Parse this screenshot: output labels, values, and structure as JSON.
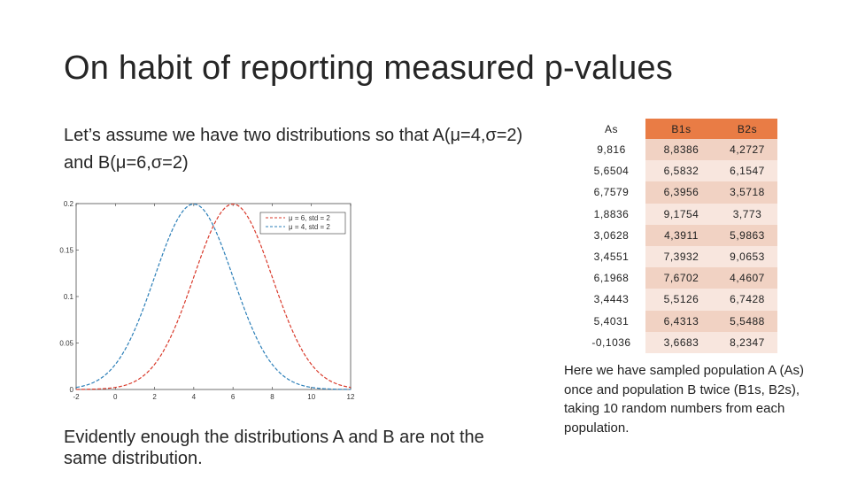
{
  "slide": {
    "title": "On habit of reporting measured p-values",
    "intro_text": "Let’s assume we have two distributions so that A(μ=4,σ=2) and B(μ=6,σ=2)",
    "conclusion_text": "Evidently enough the distributions A and B are not the same distribution.",
    "caption_text": "Here we have sampled population A (As) once and population B twice (B1s, B2s), taking 10 random numbers from each population."
  },
  "table": {
    "headers": [
      "As",
      "B1s",
      "B2s"
    ],
    "rows": [
      [
        "9,816",
        "8,8386",
        "4,2727"
      ],
      [
        "5,6504",
        "6,5832",
        "6,1547"
      ],
      [
        "6,7579",
        "6,3956",
        "3,5718"
      ],
      [
        "1,8836",
        "9,1754",
        "3,773"
      ],
      [
        "3,0628",
        "4,3911",
        "5,9863"
      ],
      [
        "3,4551",
        "7,3932",
        "9,0653"
      ],
      [
        "6,1968",
        "7,6702",
        "4,4607"
      ],
      [
        "3,4443",
        "5,5126",
        "6,7428"
      ],
      [
        "5,4031",
        "6,4313",
        "5,5488"
      ],
      [
        "-0,1036",
        "3,6683",
        "8,2347"
      ]
    ],
    "colors": {
      "header_accent": "#e97c45",
      "row_band_1": "#f1d2c3",
      "row_band_2": "#f8e6de"
    }
  },
  "chart_data": {
    "type": "line",
    "title": "",
    "xlabel": "",
    "ylabel": "",
    "xlim": [
      -2,
      12
    ],
    "ylim": [
      0,
      0.2
    ],
    "x_ticks": [
      "-2",
      "0",
      "2",
      "4",
      "6",
      "8",
      "10",
      "12"
    ],
    "y_ticks": [
      "0",
      "0.05",
      "0.1",
      "0.15",
      "0.2"
    ],
    "legend_position": "top-right",
    "series": [
      {
        "name": "μ = 6, std = 2",
        "mean": 6,
        "std": 2,
        "color": "#d93a2b",
        "style": "dashed"
      },
      {
        "name": "μ = 4, std = 2",
        "mean": 4,
        "std": 2,
        "color": "#2c7fb8",
        "style": "dashed"
      }
    ]
  }
}
